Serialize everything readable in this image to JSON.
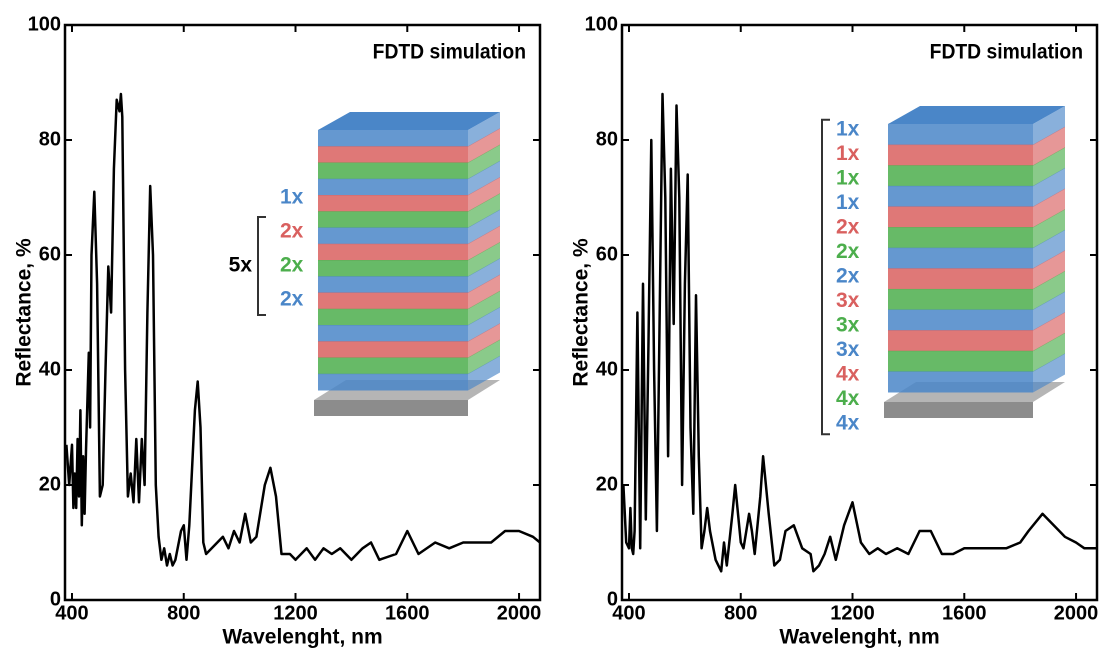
{
  "chart_data": [
    {
      "type": "line",
      "title": "FDTD simulation",
      "xlabel": "Wavelenght, nm",
      "ylabel": "Reflectance, %",
      "color": "#000000",
      "xlim": [
        375,
        2075
      ],
      "xticks": [
        400,
        800,
        1200,
        1600,
        2000
      ],
      "ylim": [
        0,
        100
      ],
      "yticks": [
        0,
        20,
        40,
        60,
        80,
        100
      ],
      "x": [
        380,
        390,
        400,
        405,
        410,
        415,
        420,
        425,
        430,
        435,
        440,
        445,
        450,
        460,
        465,
        470,
        480,
        490,
        500,
        510,
        520,
        530,
        540,
        550,
        560,
        570,
        575,
        580,
        590,
        600,
        610,
        620,
        630,
        640,
        650,
        660,
        670,
        680,
        690,
        700,
        710,
        720,
        730,
        740,
        750,
        760,
        770,
        790,
        800,
        810,
        820,
        840,
        850,
        860,
        870,
        880,
        900,
        920,
        940,
        960,
        980,
        1000,
        1020,
        1040,
        1060,
        1090,
        1110,
        1130,
        1150,
        1180,
        1200,
        1240,
        1270,
        1300,
        1330,
        1360,
        1400,
        1440,
        1470,
        1500,
        1560,
        1600,
        1640,
        1700,
        1750,
        1800,
        1850,
        1900,
        1950,
        2000,
        2050,
        2075
      ],
      "values": [
        27,
        20,
        27,
        16,
        22,
        16,
        28,
        18,
        33,
        13,
        25,
        15,
        26,
        43,
        30,
        60,
        71,
        55,
        18,
        20,
        40,
        58,
        50,
        75,
        87,
        85,
        88,
        84,
        40,
        18,
        22,
        17,
        28,
        17,
        28,
        20,
        50,
        72,
        60,
        20,
        11,
        7,
        9,
        6,
        8,
        6,
        7,
        12,
        13,
        7,
        13,
        33,
        38,
        30,
        10,
        8,
        9,
        10,
        11,
        9,
        12,
        10,
        15,
        10,
        11,
        20,
        23,
        18,
        8,
        8,
        7,
        9,
        7,
        9,
        8,
        9,
        7,
        9,
        10,
        7,
        8,
        12,
        8,
        10,
        9,
        10,
        10,
        10,
        12,
        12,
        11,
        10
      ],
      "bracket_label": "5x",
      "layer_labels": [
        {
          "text": "1x",
          "color": "#4a86c8"
        },
        {
          "text": "2x",
          "color": "#d9605f"
        },
        {
          "text": "2x",
          "color": "#4cae4c"
        },
        {
          "text": "2x",
          "color": "#4a86c8"
        }
      ]
    },
    {
      "type": "line",
      "title": "FDTD simulation",
      "xlabel": "Wavelenght, nm",
      "ylabel": "Reflectance, %",
      "color": "#000000",
      "xlim": [
        375,
        2075
      ],
      "xticks": [
        400,
        800,
        1200,
        1600,
        2000
      ],
      "ylim": [
        0,
        100
      ],
      "yticks": [
        0,
        20,
        40,
        60,
        80,
        100
      ],
      "x": [
        380,
        390,
        400,
        405,
        410,
        415,
        420,
        430,
        440,
        450,
        460,
        470,
        480,
        490,
        500,
        510,
        520,
        530,
        540,
        550,
        560,
        570,
        580,
        590,
        600,
        610,
        620,
        630,
        640,
        650,
        660,
        670,
        680,
        690,
        710,
        730,
        740,
        750,
        770,
        780,
        800,
        810,
        830,
        840,
        850,
        870,
        880,
        900,
        920,
        940,
        960,
        990,
        1020,
        1050,
        1060,
        1080,
        1100,
        1120,
        1140,
        1170,
        1200,
        1230,
        1260,
        1290,
        1320,
        1360,
        1400,
        1440,
        1480,
        1520,
        1560,
        1600,
        1650,
        1700,
        1750,
        1800,
        1830,
        1880,
        1920,
        1960,
        2000,
        2030,
        2075
      ],
      "values": [
        20,
        10,
        9,
        16,
        9,
        8,
        12,
        50,
        9,
        55,
        14,
        45,
        80,
        40,
        12,
        50,
        88,
        70,
        25,
        75,
        48,
        86,
        70,
        20,
        55,
        74,
        30,
        15,
        53,
        25,
        9,
        12,
        16,
        12,
        7,
        5,
        10,
        6,
        15,
        20,
        10,
        9,
        15,
        12,
        8,
        18,
        25,
        15,
        6,
        7,
        12,
        13,
        9,
        8,
        5,
        6,
        8,
        11,
        7,
        13,
        17,
        10,
        8,
        9,
        8,
        9,
        8,
        12,
        12,
        8,
        8,
        9,
        9,
        9,
        9,
        10,
        12,
        15,
        13,
        11,
        10,
        9,
        9
      ],
      "layer_labels": [
        {
          "text": "1x",
          "color": "#4a86c8"
        },
        {
          "text": "1x",
          "color": "#d9605f"
        },
        {
          "text": "1x",
          "color": "#4cae4c"
        },
        {
          "text": "1x",
          "color": "#4a86c8"
        },
        {
          "text": "2x",
          "color": "#d9605f"
        },
        {
          "text": "2x",
          "color": "#4cae4c"
        },
        {
          "text": "2x",
          "color": "#4a86c8"
        },
        {
          "text": "3x",
          "color": "#d9605f"
        },
        {
          "text": "3x",
          "color": "#4cae4c"
        },
        {
          "text": "3x",
          "color": "#4a86c8"
        },
        {
          "text": "4x",
          "color": "#d9605f"
        },
        {
          "text": "4x",
          "color": "#4cae4c"
        },
        {
          "text": "4x",
          "color": "#4a86c8"
        }
      ]
    }
  ]
}
